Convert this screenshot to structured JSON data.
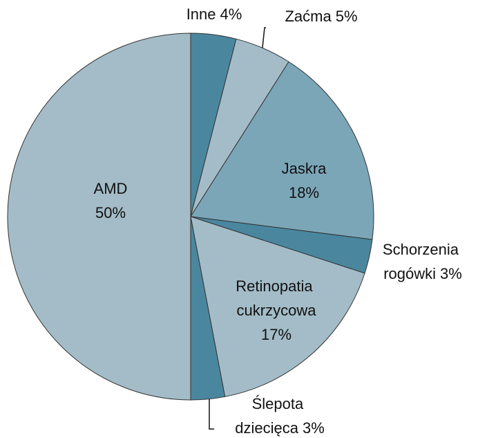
{
  "chart_data": {
    "type": "pie",
    "categories": [
      "Inne",
      "Zaćma",
      "Jaskra",
      "Schorzenia rogówki",
      "Retinopatia cukrzycowa",
      "Ślepota dziecięca",
      "AMD"
    ],
    "values": [
      4,
      5,
      18,
      3,
      17,
      3,
      50
    ],
    "value_labels": [
      "4%",
      "5%",
      "18%",
      "3%",
      "17%",
      "3%",
      "50%"
    ],
    "colors": [
      "#4a879f",
      "#a3bcc8",
      "#7ba6b8",
      "#4a879f",
      "#a3bcc8",
      "#4a879f",
      "#a3bcc8"
    ]
  }
}
